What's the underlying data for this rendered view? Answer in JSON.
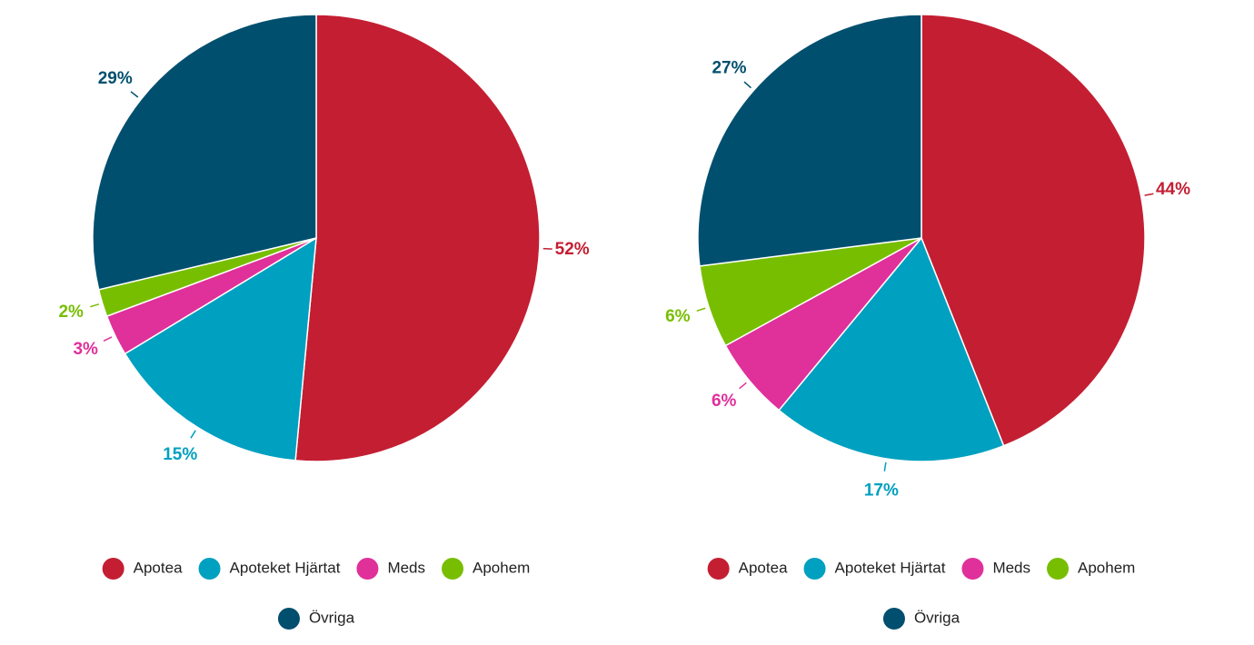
{
  "chart_data": [
    {
      "type": "pie",
      "categories": [
        "Apotea",
        "Apoteket Hjärtat",
        "Meds",
        "Apohem",
        "Övriga"
      ],
      "values": [
        52,
        15,
        3,
        2,
        29
      ],
      "value_labels": [
        "52%",
        "15%",
        "3%",
        "2%",
        "29%"
      ],
      "colors": [
        "#c41e32",
        "#00a0c0",
        "#e0309a",
        "#78be00",
        "#004f6e"
      ]
    },
    {
      "type": "pie",
      "categories": [
        "Apotea",
        "Apoteket Hjärtat",
        "Meds",
        "Apohem",
        "Övriga"
      ],
      "values": [
        44,
        17,
        6,
        6,
        27
      ],
      "value_labels": [
        "44%",
        "17%",
        "6%",
        "6%",
        "27%"
      ],
      "colors": [
        "#c41e32",
        "#00a0c0",
        "#e0309a",
        "#78be00",
        "#004f6e"
      ]
    }
  ]
}
